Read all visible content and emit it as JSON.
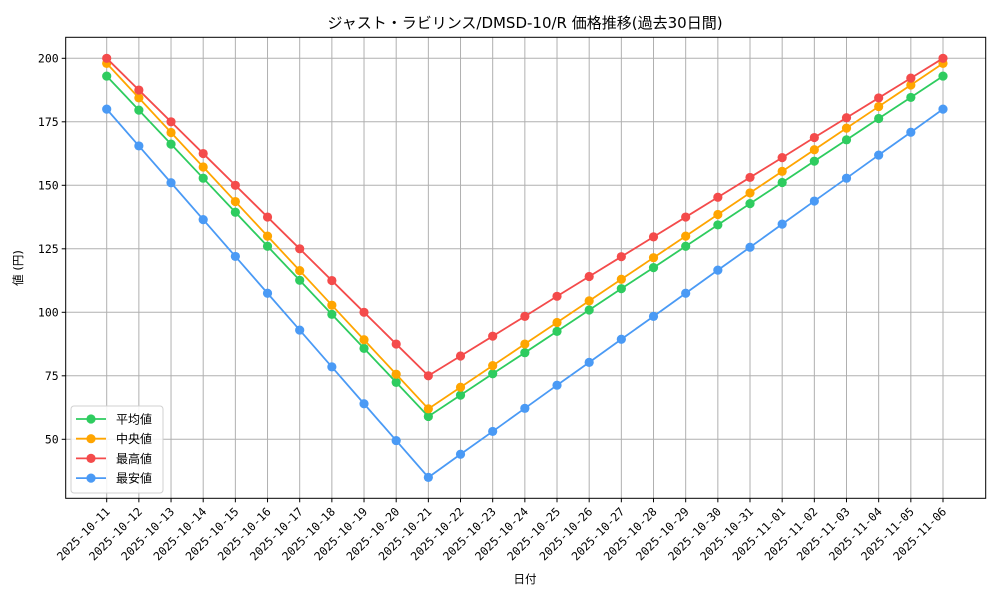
{
  "chart_data": {
    "type": "line",
    "title": "ジャスト・ラビリンス/DMSD-10/R 価格推移(過去30日間)",
    "xlabel": "日付",
    "ylabel": "値 (円)",
    "ylim": [
      26.5,
      208.4
    ],
    "yticks": [
      50,
      75,
      100,
      125,
      150,
      175,
      200
    ],
    "grid": true,
    "legend_position": "lower left",
    "x": [
      "2025-10-11",
      "2025-10-12",
      "2025-10-13",
      "2025-10-14",
      "2025-10-15",
      "2025-10-16",
      "2025-10-17",
      "2025-10-18",
      "2025-10-19",
      "2025-10-20",
      "2025-10-21",
      "2025-10-22",
      "2025-10-23",
      "2025-10-24",
      "2025-10-25",
      "2025-10-26",
      "2025-10-27",
      "2025-10-28",
      "2025-10-29",
      "2025-10-30",
      "2025-10-31",
      "2025-11-01",
      "2025-11-02",
      "2025-11-03",
      "2025-11-04",
      "2025-11-05",
      "2025-11-06"
    ],
    "series": [
      {
        "name": "平均値",
        "color": "#2ecc5f",
        "values": [
          193,
          179.6,
          166.2,
          152.8,
          139.4,
          126,
          112.6,
          99.2,
          85.8,
          72.4,
          59,
          67.4,
          75.8,
          84.1,
          92.5,
          100.9,
          109.3,
          117.6,
          126,
          134.4,
          142.8,
          151.1,
          159.5,
          167.9,
          176.3,
          184.6,
          193
        ]
      },
      {
        "name": "中央値",
        "color": "#ffa500",
        "values": [
          198,
          184.4,
          170.8,
          157.2,
          143.6,
          130,
          116.4,
          102.8,
          89.2,
          75.6,
          62,
          70.5,
          79,
          87.5,
          96,
          104.5,
          113,
          121.5,
          130,
          138.5,
          147,
          155.5,
          164,
          172.5,
          181,
          189.5,
          198
        ]
      },
      {
        "name": "最高値",
        "color": "#f44b4b",
        "values": [
          200,
          187.5,
          175,
          162.5,
          150,
          137.5,
          125,
          112.5,
          100,
          87.5,
          75,
          82.8,
          90.6,
          98.4,
          106.3,
          114.1,
          121.9,
          129.7,
          137.5,
          145.3,
          153.1,
          160.9,
          168.8,
          176.6,
          184.4,
          192.2,
          200
        ]
      },
      {
        "name": "最安値",
        "color": "#4a9af5",
        "values": [
          180,
          165.5,
          151,
          136.5,
          122,
          107.5,
          93,
          78.5,
          64,
          49.5,
          35,
          44.1,
          53.1,
          62.2,
          71.3,
          80.3,
          89.4,
          98.4,
          107.5,
          116.6,
          125.6,
          134.7,
          143.8,
          152.8,
          161.9,
          170.9,
          180
        ]
      }
    ]
  }
}
